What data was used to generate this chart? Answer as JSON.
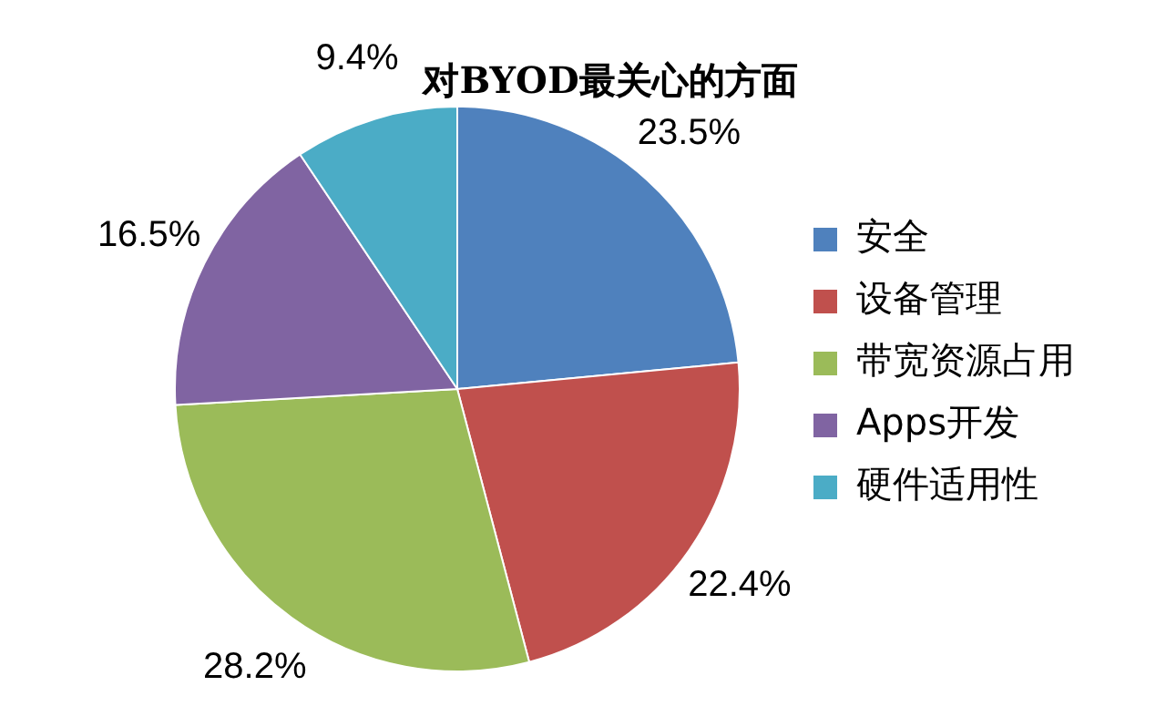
{
  "chart_data": {
    "type": "pie",
    "title": "对BYOD最关心的方面",
    "categories": [
      "安全",
      "设备管理",
      "带宽资源占用",
      "Apps开发",
      "硬件适用性"
    ],
    "values": [
      23.5,
      22.4,
      28.2,
      16.5,
      9.4
    ],
    "colors": [
      "#4f81bd",
      "#c0504d",
      "#9bbb59",
      "#8064a2",
      "#4bacc6"
    ],
    "value_labels": [
      "23.5%",
      "22.4%",
      "28.2%",
      "16.5%",
      "9.4%"
    ],
    "legend": "right"
  }
}
